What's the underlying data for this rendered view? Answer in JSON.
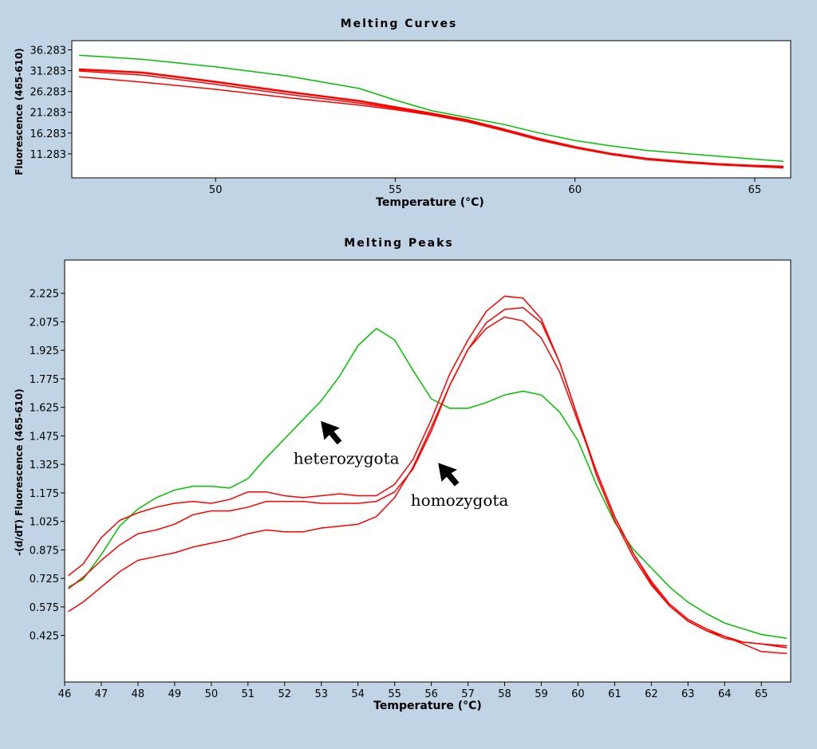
{
  "chart_data": [
    {
      "type": "line",
      "title": "Melting Curves",
      "xlabel": "Temperature (°C)",
      "ylabel": "Fluorescence (465-610)",
      "xlim": [
        46,
        66
      ],
      "ylim": [
        5.5,
        38.5
      ],
      "xticks": [
        50,
        55,
        60,
        65
      ],
      "yticks": [
        36.283,
        31.283,
        26.283,
        21.283,
        16.283,
        11.283
      ],
      "ytick_labels": [
        "36.283",
        "31.283",
        "26.283",
        "21.283",
        "16.283",
        "11.283"
      ],
      "series": [
        {
          "name": "green",
          "color": "#00c000",
          "x": [
            46.2,
            48,
            50,
            52,
            54,
            55,
            56,
            57,
            58,
            59,
            60,
            61,
            62,
            63,
            64,
            65,
            65.8
          ],
          "y": [
            35.0,
            34.0,
            32.2,
            30.0,
            27.0,
            24.2,
            21.7,
            20.0,
            18.4,
            16.3,
            14.5,
            13.2,
            12.1,
            11.4,
            10.7,
            10.0,
            9.5
          ]
        },
        {
          "name": "red-1",
          "color": "#ff0000",
          "x": [
            46.2,
            48,
            50,
            52,
            54,
            55,
            56,
            57,
            58,
            59,
            60,
            61,
            62,
            63,
            64,
            65,
            65.8
          ],
          "y": [
            31.6,
            30.8,
            28.6,
            26.2,
            24.0,
            22.5,
            21.0,
            19.4,
            17.2,
            14.9,
            12.9,
            11.3,
            10.1,
            9.4,
            8.8,
            8.4,
            8.2
          ]
        },
        {
          "name": "red-2",
          "color": "#ff0000",
          "x": [
            46.2,
            48,
            50,
            52,
            54,
            55,
            56,
            57,
            58,
            59,
            60,
            61,
            62,
            63,
            64,
            65,
            65.8
          ],
          "y": [
            31.2,
            30.2,
            28.0,
            25.6,
            23.5,
            22.2,
            20.8,
            19.2,
            17.0,
            14.7,
            12.8,
            11.2,
            10.0,
            9.3,
            8.7,
            8.3,
            8.0
          ]
        },
        {
          "name": "red-3",
          "color": "#ff0000",
          "x": [
            46.2,
            48,
            50,
            52,
            54,
            55,
            56,
            57,
            58,
            59,
            60,
            61,
            62,
            63,
            64,
            65,
            65.8
          ],
          "y": [
            29.8,
            28.5,
            26.8,
            24.8,
            23.0,
            21.9,
            20.6,
            19.0,
            16.9,
            14.6,
            12.7,
            11.1,
            9.9,
            9.2,
            8.6,
            8.2,
            7.9
          ]
        }
      ]
    },
    {
      "type": "line",
      "title": "Melting Peaks",
      "xlabel": "Temperature (°C)",
      "ylabel": "-(d/dT) Fluorescence (465-610)",
      "xlim": [
        46,
        65.8
      ],
      "ylim": [
        0.18,
        2.4
      ],
      "xticks": [
        46,
        47,
        48,
        49,
        50,
        51,
        52,
        53,
        54,
        55,
        56,
        57,
        58,
        59,
        60,
        61,
        62,
        63,
        64,
        65
      ],
      "yticks": [
        2.225,
        2.075,
        1.925,
        1.775,
        1.625,
        1.475,
        1.325,
        1.175,
        1.025,
        0.875,
        0.725,
        0.575,
        0.425
      ],
      "ytick_labels": [
        "2.225",
        "2.075",
        "1.925",
        "1.775",
        "1.625",
        "1.475",
        "1.325",
        "1.175",
        "1.025",
        "0.875",
        "0.725",
        "0.575",
        "0.425"
      ],
      "series": [
        {
          "name": "heterozygota",
          "color": "#00c000",
          "x": [
            46.1,
            46.5,
            47,
            47.5,
            48,
            48.5,
            49,
            49.5,
            50,
            50.5,
            51,
            51.5,
            52,
            52.5,
            53,
            53.5,
            54,
            54.5,
            55,
            55.5,
            56,
            56.5,
            57,
            57.5,
            58,
            58.5,
            59,
            59.5,
            60,
            60.5,
            61,
            61.5,
            62,
            62.5,
            63,
            63.5,
            64,
            64.5,
            65,
            65.7
          ],
          "y": [
            0.68,
            0.72,
            0.85,
            1.0,
            1.09,
            1.15,
            1.19,
            1.21,
            1.21,
            1.2,
            1.25,
            1.36,
            1.46,
            1.56,
            1.66,
            1.79,
            1.95,
            2.04,
            1.98,
            1.82,
            1.67,
            1.62,
            1.62,
            1.65,
            1.69,
            1.71,
            1.69,
            1.6,
            1.45,
            1.22,
            1.02,
            0.88,
            0.78,
            0.68,
            0.6,
            0.54,
            0.49,
            0.46,
            0.43,
            0.41
          ]
        },
        {
          "name": "homozygota-1",
          "color": "#ff0000",
          "x": [
            46.1,
            46.5,
            47,
            47.5,
            48,
            48.5,
            49,
            49.5,
            50,
            50.5,
            51,
            51.5,
            52,
            52.5,
            53,
            53.5,
            54,
            54.5,
            55,
            55.5,
            56,
            56.5,
            57,
            57.5,
            58,
            58.5,
            59,
            59.5,
            60,
            60.5,
            61,
            61.5,
            62,
            62.5,
            63,
            63.5,
            64,
            64.5,
            65,
            65.7
          ],
          "y": [
            0.74,
            0.8,
            0.94,
            1.03,
            1.07,
            1.1,
            1.12,
            1.13,
            1.12,
            1.14,
            1.18,
            1.18,
            1.16,
            1.15,
            1.16,
            1.17,
            1.16,
            1.16,
            1.22,
            1.35,
            1.56,
            1.8,
            1.98,
            2.13,
            2.21,
            2.2,
            2.09,
            1.86,
            1.57,
            1.27,
            1.03,
            0.84,
            0.69,
            0.58,
            0.5,
            0.45,
            0.42,
            0.39,
            0.38,
            0.36
          ]
        },
        {
          "name": "homozygota-2",
          "color": "#ff0000",
          "x": [
            46.1,
            46.5,
            47,
            47.5,
            48,
            48.5,
            49,
            49.5,
            50,
            50.5,
            51,
            51.5,
            52,
            52.5,
            53,
            53.5,
            54,
            54.5,
            55,
            55.5,
            56,
            56.5,
            57,
            57.5,
            58,
            58.5,
            59,
            59.5,
            60,
            60.5,
            61,
            61.5,
            62,
            62.5,
            63,
            63.5,
            64,
            64.5,
            65,
            65.7
          ],
          "y": [
            0.67,
            0.73,
            0.82,
            0.9,
            0.96,
            0.98,
            1.01,
            1.06,
            1.08,
            1.08,
            1.1,
            1.13,
            1.13,
            1.13,
            1.12,
            1.12,
            1.12,
            1.13,
            1.18,
            1.3,
            1.5,
            1.74,
            1.93,
            2.07,
            2.14,
            2.15,
            2.07,
            1.86,
            1.57,
            1.29,
            1.05,
            0.86,
            0.7,
            0.58,
            0.5,
            0.45,
            0.41,
            0.39,
            0.38,
            0.37
          ]
        },
        {
          "name": "homozygota-3",
          "color": "#ff0000",
          "x": [
            46.1,
            46.5,
            47,
            47.5,
            48,
            48.5,
            49,
            49.5,
            50,
            50.5,
            51,
            51.5,
            52,
            52.5,
            53,
            53.5,
            54,
            54.5,
            55,
            55.5,
            56,
            56.5,
            57,
            57.5,
            58,
            58.5,
            59,
            59.5,
            60,
            60.5,
            61,
            61.5,
            62,
            62.5,
            63,
            63.5,
            64,
            64.5,
            65,
            65.7
          ],
          "y": [
            0.55,
            0.6,
            0.68,
            0.76,
            0.82,
            0.84,
            0.86,
            0.89,
            0.91,
            0.93,
            0.96,
            0.98,
            0.97,
            0.97,
            0.99,
            1.0,
            1.01,
            1.05,
            1.15,
            1.31,
            1.52,
            1.74,
            1.93,
            2.04,
            2.1,
            2.08,
            1.99,
            1.81,
            1.55,
            1.29,
            1.05,
            0.86,
            0.71,
            0.59,
            0.51,
            0.46,
            0.42,
            0.38,
            0.34,
            0.33
          ]
        }
      ],
      "annotations": [
        {
          "text": "heterozygota",
          "points_to": {
            "x": 53.0,
            "y": 1.55
          }
        },
        {
          "text": "homozygota",
          "points_to": {
            "x": 56.2,
            "y": 1.33
          }
        }
      ]
    }
  ]
}
